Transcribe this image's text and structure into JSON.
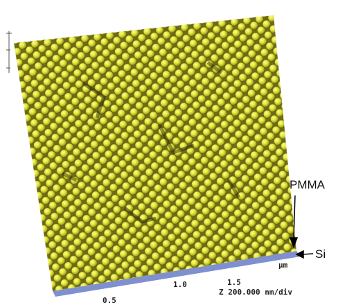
{
  "labels": {
    "pmma": "PMMA",
    "si": "Si"
  },
  "axis": {
    "unit": "μm",
    "ticks": [
      "0.5",
      "1.0",
      "1.5"
    ],
    "z_scale": "Z 200.000 nm/div"
  }
}
